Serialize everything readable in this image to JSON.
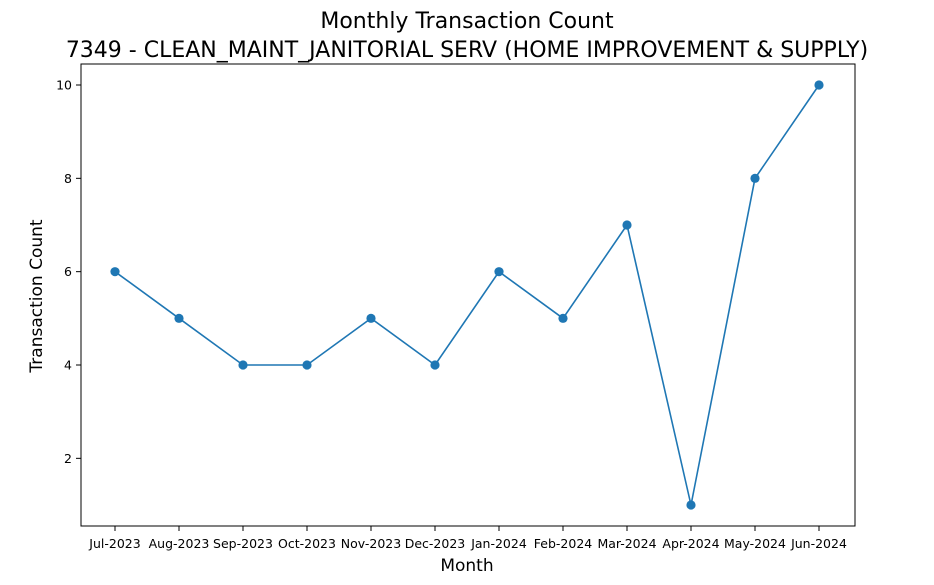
{
  "chart_data": {
    "type": "line",
    "title": "Monthly Transaction Count",
    "subtitle": "7349 - CLEAN_MAINT_JANITORIAL SERV (HOME IMPROVEMENT & SUPPLY)",
    "xlabel": "Month",
    "ylabel": "Transaction Count",
    "categories": [
      "Jul-2023",
      "Aug-2023",
      "Sep-2023",
      "Oct-2023",
      "Nov-2023",
      "Dec-2023",
      "Jan-2024",
      "Feb-2024",
      "Mar-2024",
      "Apr-2024",
      "May-2024",
      "Jun-2024"
    ],
    "series": [
      {
        "values": [
          6,
          5,
          4,
          4,
          5,
          4,
          6,
          5,
          7,
          1,
          8,
          10
        ],
        "color": "#1f77b4",
        "marker": "circle"
      }
    ],
    "yticks": [
      2,
      4,
      6,
      8,
      10
    ],
    "ylim": [
      0.55,
      10.45
    ],
    "grid": false,
    "legend": "none"
  }
}
